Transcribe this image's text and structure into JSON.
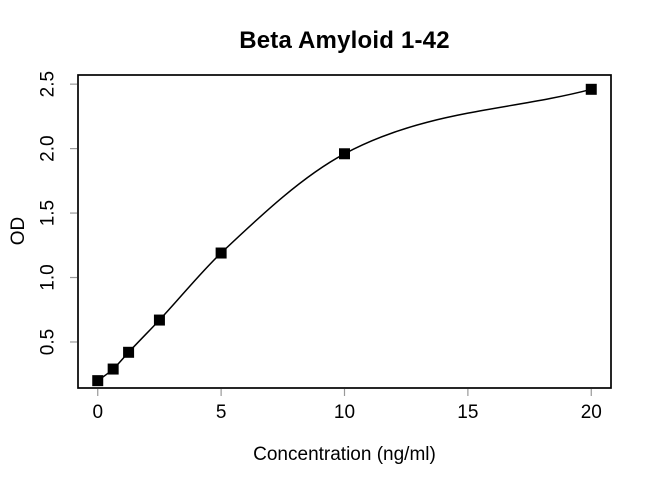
{
  "chart_data": {
    "type": "scatter",
    "title": "Beta Amyloid 1-42",
    "xlabel": "Concentration (ng/ml)",
    "ylabel": "OD",
    "x": [
      0,
      0.625,
      1.25,
      2.5,
      5,
      10,
      20
    ],
    "y": [
      0.2,
      0.29,
      0.42,
      0.67,
      1.19,
      1.96,
      2.46
    ],
    "x_ticks": [
      0,
      5,
      10,
      15,
      20
    ],
    "y_ticks": [
      0.5,
      1.0,
      1.5,
      2.0,
      2.5
    ],
    "xlim": [
      -0.8,
      20.8
    ],
    "ylim": [
      0.143,
      2.571
    ],
    "grid": false,
    "legend": null,
    "marker": "filled-square",
    "curve": "smooth-fit-through-points",
    "colors": {
      "line": "#000000",
      "marker": "#000000",
      "frame": "#000000",
      "tick": "#999999",
      "text": "#000000",
      "background": "#ffffff"
    }
  }
}
